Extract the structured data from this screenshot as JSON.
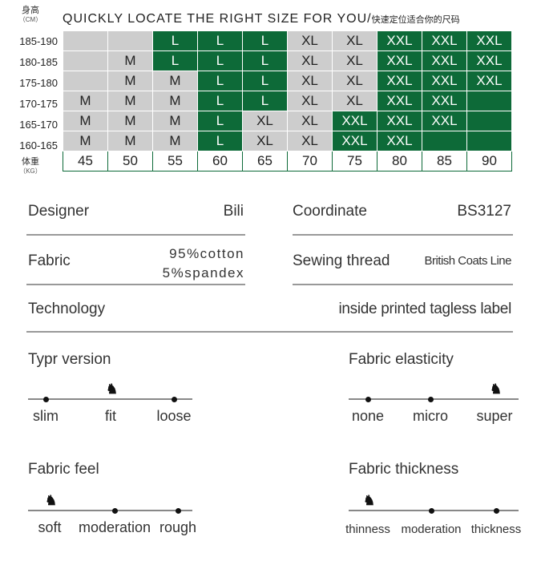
{
  "header": {
    "height_label": "身高",
    "height_unit": "（CM）",
    "weight_label": "体重",
    "weight_unit": "（KG）",
    "title": "QUICKLY LOCATE THE RIGHT SIZE FOR YOU/",
    "title_cn": "快速定位适合你的尺码"
  },
  "colors": {
    "green": "#0d6a38",
    "gray": "#cdcdcd"
  },
  "size_table": {
    "weights": [
      "45",
      "50",
      "55",
      "60",
      "65",
      "70",
      "75",
      "80",
      "85",
      "90"
    ],
    "rows": [
      {
        "height": "185-190",
        "cells": [
          "",
          "",
          "L",
          "L",
          "L",
          "XL",
          "XL",
          "XXL",
          "XXL",
          "XXL"
        ],
        "fill": [
          "w",
          "w",
          "g",
          "g",
          "g",
          "w",
          "w",
          "g",
          "g",
          "g"
        ]
      },
      {
        "height": "180-185",
        "cells": [
          "",
          "M",
          "L",
          "L",
          "L",
          "XL",
          "XL",
          "XXL",
          "XXL",
          "XXL"
        ],
        "fill": [
          "w",
          "w",
          "g",
          "g",
          "g",
          "w",
          "w",
          "g",
          "g",
          "g"
        ]
      },
      {
        "height": "175-180",
        "cells": [
          "",
          "M",
          "M",
          "L",
          "L",
          "XL",
          "XL",
          "XXL",
          "XXL",
          "XXL"
        ],
        "fill": [
          "w",
          "w",
          "w",
          "g",
          "g",
          "w",
          "w",
          "g",
          "g",
          "g"
        ]
      },
      {
        "height": "170-175",
        "cells": [
          "M",
          "M",
          "M",
          "L",
          "L",
          "XL",
          "XL",
          "XXL",
          "XXL",
          ""
        ],
        "fill": [
          "w",
          "w",
          "w",
          "g",
          "g",
          "w",
          "w",
          "g",
          "g",
          "g"
        ]
      },
      {
        "height": "165-170",
        "cells": [
          "M",
          "M",
          "M",
          "L",
          "XL",
          "XL",
          "XXL",
          "XXL",
          "XXL",
          ""
        ],
        "fill": [
          "w",
          "w",
          "w",
          "g",
          "w",
          "w",
          "g",
          "g",
          "g",
          "g"
        ]
      },
      {
        "height": "160-165",
        "cells": [
          "M",
          "M",
          "M",
          "L",
          "XL",
          "XL",
          "XXL",
          "XXL",
          "",
          ""
        ],
        "fill": [
          "w",
          "w",
          "w",
          "g",
          "w",
          "w",
          "g",
          "g",
          "g",
          "g"
        ]
      }
    ]
  },
  "specs": {
    "designer_label": "Designer",
    "designer": "Bili",
    "coordinate_label": "Coordinate",
    "coordinate": "BS3127",
    "fabric_label": "Fabric",
    "fabric_1": "95%cotton",
    "fabric_2": "5%spandex",
    "thread_label": "Sewing thread",
    "thread": "British Coats Line",
    "technology_label": "Technology",
    "technology": "inside printed tagless label"
  },
  "sliders": [
    {
      "title": "Typr version",
      "options": [
        "slim",
        "fit",
        "loose"
      ],
      "selected": 1
    },
    {
      "title": "Fabric elasticity",
      "options": [
        "none",
        "micro",
        "super"
      ],
      "selected": 2
    },
    {
      "title": "Fabric feel",
      "options": [
        "soft",
        "moderation",
        "rough"
      ],
      "selected": 0
    },
    {
      "title": "Fabric thickness",
      "options": [
        "thinness",
        "moderation",
        "thickness"
      ],
      "selected": 0
    }
  ]
}
